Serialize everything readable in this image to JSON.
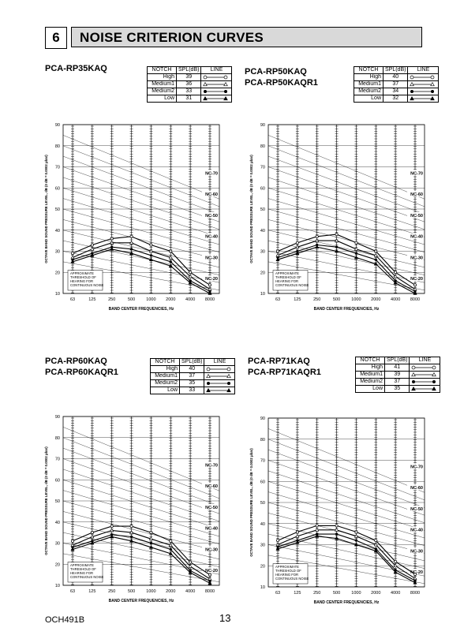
{
  "section": {
    "number": "6",
    "title": "NOISE CRITERION CURVES"
  },
  "table_headers": [
    "NOTCH",
    "SPL(dB)",
    "LINE"
  ],
  "panels": [
    {
      "models": [
        "PCA-RP35KAQ"
      ],
      "notch_rows": [
        {
          "notch": "High",
          "spl": "39",
          "marker": "circle"
        },
        {
          "notch": "Medium1",
          "spl": "36",
          "marker": "triangle-open"
        },
        {
          "notch": "Medium2",
          "spl": "33",
          "marker": "dot"
        },
        {
          "notch": "Low",
          "spl": "31",
          "marker": "triangle-filled"
        }
      ]
    },
    {
      "models": [
        "PCA-RP50KAQ",
        "PCA-RP50KAQR1"
      ],
      "notch_rows": [
        {
          "notch": "High",
          "spl": "40",
          "marker": "circle"
        },
        {
          "notch": "Medium1",
          "spl": "37",
          "marker": "triangle-open"
        },
        {
          "notch": "Medium2",
          "spl": "34",
          "marker": "dot"
        },
        {
          "notch": "Low",
          "spl": "32",
          "marker": "triangle-filled"
        }
      ]
    },
    {
      "models": [
        "PCA-RP60KAQ",
        "PCA-RP60KAQR1"
      ],
      "notch_rows": [
        {
          "notch": "High",
          "spl": "40",
          "marker": "circle"
        },
        {
          "notch": "Medium1",
          "spl": "37",
          "marker": "triangle-open"
        },
        {
          "notch": "Medium2",
          "spl": "35",
          "marker": "dot"
        },
        {
          "notch": "Low",
          "spl": "33",
          "marker": "triangle-filled"
        }
      ]
    },
    {
      "models": [
        "PCA-RP71KAQ",
        "PCA-RP71KAQR1"
      ],
      "notch_rows": [
        {
          "notch": "High",
          "spl": "41",
          "marker": "circle"
        },
        {
          "notch": "Medium1",
          "spl": "39",
          "marker": "triangle-open"
        },
        {
          "notch": "Medium2",
          "spl": "37",
          "marker": "dot"
        },
        {
          "notch": "Low",
          "spl": "35",
          "marker": "triangle-filled"
        }
      ]
    }
  ],
  "chart_data": [
    {
      "type": "line",
      "ylabel": "OCTAVE BAND SOUND PRESSURE LEVEL, dB (0 dB = 0.0002 μbar)",
      "xlabel": "BAND CENTER FREQUENCIES, Hz",
      "categories": [
        "63",
        "125",
        "250",
        "500",
        "1000",
        "2000",
        "4000",
        "8000"
      ],
      "ylim": [
        10,
        90
      ],
      "yticks": [
        "10",
        "20",
        "30",
        "40",
        "50",
        "60",
        "70",
        "80",
        "90"
      ],
      "nc_labels": [
        "NC-70",
        "NC-60",
        "NC-50",
        "NC-40",
        "NC-30",
        "NC-20"
      ],
      "threshold_note": "APPROXIMATE THRESHOLD OF HEARING FOR CONTINUOUS NOISE",
      "series": [
        {
          "values": [
            29,
            33,
            36,
            37,
            33,
            30,
            20,
            14
          ]
        },
        {
          "values": [
            27,
            31,
            34,
            34,
            30,
            27,
            18,
            12
          ]
        },
        {
          "values": [
            26,
            29,
            32,
            31,
            28,
            25,
            16,
            11
          ]
        },
        {
          "values": [
            25,
            28,
            31,
            29,
            26,
            23,
            15,
            10
          ]
        }
      ]
    },
    {
      "type": "line",
      "ylabel": "OCTAVE BAND SOUND PRESSURE LEVEL, dB (0 dB = 0.0002 μbar)",
      "xlabel": "BAND CENTER FREQUENCIES, Hz",
      "categories": [
        "63",
        "125",
        "250",
        "500",
        "1000",
        "2000",
        "4000",
        "8000"
      ],
      "ylim": [
        10,
        90
      ],
      "yticks": [
        "10",
        "20",
        "30",
        "40",
        "50",
        "60",
        "70",
        "80",
        "90"
      ],
      "nc_labels": [
        "NC-70",
        "NC-60",
        "NC-50",
        "NC-40",
        "NC-30",
        "NC-20"
      ],
      "threshold_note": "APPROXIMATE THRESHOLD OF HEARING FOR CONTINUOUS NOISE",
      "series": [
        {
          "values": [
            30,
            34,
            37,
            38,
            34,
            30,
            20,
            14
          ]
        },
        {
          "values": [
            28,
            32,
            35,
            35,
            31,
            28,
            18,
            12
          ]
        },
        {
          "values": [
            27,
            30,
            33,
            32,
            29,
            26,
            16,
            11
          ]
        },
        {
          "values": [
            26,
            29,
            32,
            30,
            27,
            24,
            15,
            10
          ]
        }
      ]
    },
    {
      "type": "line",
      "ylabel": "OCTAVE BAND SOUND PRESSURE LEVEL, dB (0 dB = 0.0002 μbar)",
      "xlabel": "BAND CENTER FREQUENCIES, Hz",
      "categories": [
        "63",
        "125",
        "250",
        "500",
        "1000",
        "2000",
        "4000",
        "8000"
      ],
      "ylim": [
        10,
        90
      ],
      "yticks": [
        "10",
        "20",
        "30",
        "40",
        "50",
        "60",
        "70",
        "80",
        "90"
      ],
      "nc_labels": [
        "NC-70",
        "NC-60",
        "NC-50",
        "NC-40",
        "NC-30",
        "NC-20"
      ],
      "threshold_note": "APPROXIMATE THRESHOLD OF HEARING FOR CONTINUOUS NOISE",
      "series": [
        {
          "values": [
            31,
            35,
            38,
            38,
            35,
            31,
            21,
            15
          ]
        },
        {
          "values": [
            29,
            33,
            36,
            35,
            32,
            29,
            19,
            13
          ]
        },
        {
          "values": [
            28,
            31,
            34,
            33,
            30,
            27,
            17,
            12
          ]
        },
        {
          "values": [
            27,
            30,
            33,
            31,
            28,
            25,
            16,
            11
          ]
        }
      ]
    },
    {
      "type": "line",
      "ylabel": "OCTAVE BAND SOUND PRESSURE LEVEL, dB (0 dB = 0.0002 μbar)",
      "xlabel": "BAND CENTER FREQUENCIES, Hz",
      "categories": [
        "63",
        "125",
        "250",
        "500",
        "1000",
        "2000",
        "4000",
        "8000"
      ],
      "ylim": [
        10,
        90
      ],
      "yticks": [
        "10",
        "20",
        "30",
        "40",
        "50",
        "60",
        "70",
        "80",
        "90"
      ],
      "nc_labels": [
        "NC-70",
        "NC-60",
        "NC-50",
        "NC-40",
        "NC-30",
        "NC-20"
      ],
      "threshold_note": "APPROXIMATE THRESHOLD OF HEARING FOR CONTINUOUS NOISE",
      "series": [
        {
          "values": [
            32,
            36,
            39,
            39,
            36,
            32,
            22,
            16
          ]
        },
        {
          "values": [
            30,
            34,
            37,
            37,
            34,
            30,
            20,
            14
          ]
        },
        {
          "values": [
            29,
            32,
            35,
            35,
            32,
            28,
            18,
            13
          ]
        },
        {
          "values": [
            28,
            31,
            34,
            33,
            30,
            27,
            17,
            12
          ]
        }
      ]
    }
  ],
  "footer": {
    "doc_code": "OCH491B",
    "page_number": "13"
  }
}
